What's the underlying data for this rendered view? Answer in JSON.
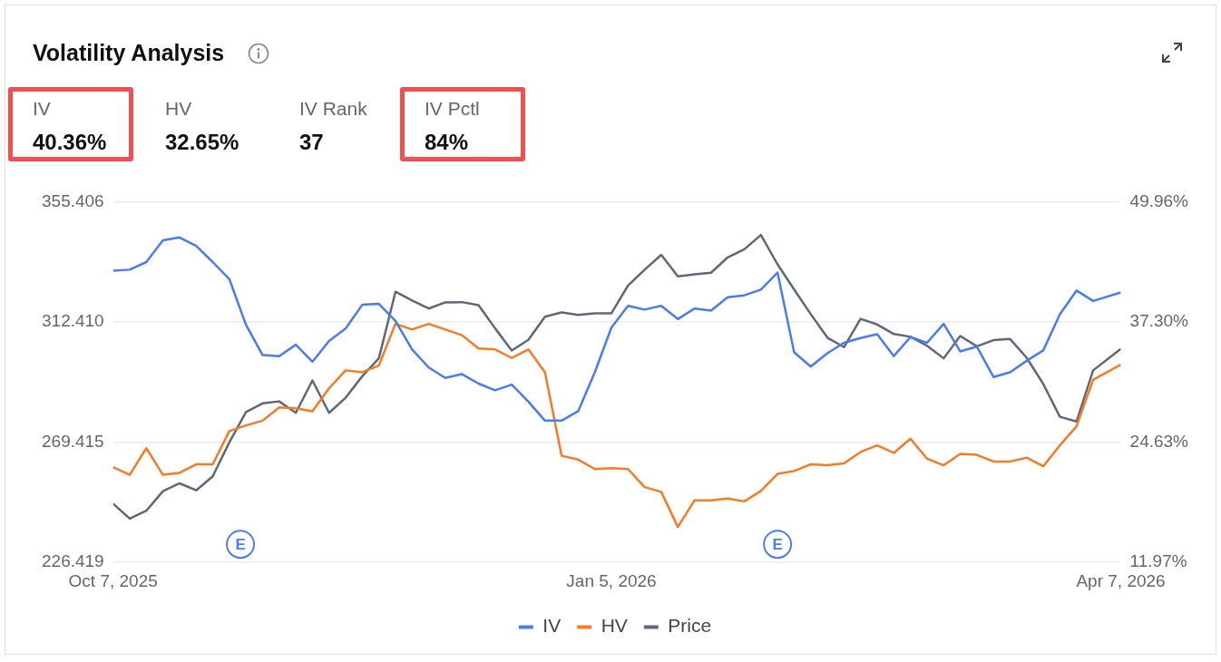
{
  "chart_data": [
    {
      "type": "other",
      "title": "Volatility Analysis",
      "annotations": [
        "IV",
        "40.36%",
        "HV",
        "32.65%",
        "IV Rank",
        "37",
        "IV Pctl",
        "84%"
      ]
    },
    {
      "type": "line",
      "x": [
        "2025-10-07",
        "2025-10-10",
        "2025-10-13",
        "2025-10-16",
        "2025-10-19",
        "2025-10-22",
        "2025-10-25",
        "2025-10-28",
        "2025-10-31",
        "2025-11-03",
        "2025-11-06",
        "2025-11-09",
        "2025-11-12",
        "2025-11-15",
        "2025-11-18",
        "2025-11-21",
        "2025-11-24",
        "2025-11-27",
        "2025-11-30",
        "2025-12-03",
        "2025-12-06",
        "2025-12-09",
        "2025-12-12",
        "2025-12-15",
        "2025-12-18",
        "2025-12-21",
        "2025-12-24",
        "2025-12-27",
        "2025-12-30",
        "2026-01-02",
        "2026-01-05",
        "2026-01-08",
        "2026-01-11",
        "2026-01-14",
        "2026-01-17",
        "2026-01-20",
        "2026-01-23",
        "2026-01-26",
        "2026-01-29",
        "2026-02-01",
        "2026-02-04",
        "2026-02-07",
        "2026-02-10",
        "2026-02-13",
        "2026-02-16",
        "2026-02-19",
        "2026-02-22",
        "2026-02-25",
        "2026-02-28",
        "2026-03-03",
        "2026-03-06",
        "2026-03-09",
        "2026-03-12",
        "2026-03-15",
        "2026-03-18",
        "2026-03-21",
        "2026-03-24",
        "2026-03-27",
        "2026-03-30",
        "2026-04-02",
        "2026-04-07"
      ],
      "series": [
        {
          "name": "IV",
          "color": "#4a7bf0",
          "axis": "y2",
          "values": [
            42.7,
            42.8,
            43.6,
            45.9,
            46.2,
            45.3,
            43.6,
            41.8,
            37.0,
            33.8,
            33.7,
            34.9,
            33.1,
            35.3,
            36.6,
            39.1,
            39.2,
            37.4,
            34.4,
            32.5,
            31.4,
            31.8,
            30.8,
            30.1,
            30.7,
            28.9,
            26.9,
            26.9,
            27.9,
            32.0,
            36.7,
            39.0,
            38.6,
            39.0,
            37.6,
            38.7,
            38.5,
            39.9,
            40.1,
            40.7,
            42.5,
            34.1,
            32.6,
            34.0,
            35.1,
            35.6,
            36.0,
            33.7,
            35.7,
            35.1,
            37.1,
            34.2,
            34.7,
            31.5,
            32.0,
            33.2,
            34.3,
            38.1,
            40.6,
            39.5,
            40.4
          ]
        },
        {
          "name": "HV",
          "color": "#f57b25",
          "axis": "y2",
          "values": [
            22.0,
            21.2,
            24.0,
            21.2,
            21.4,
            22.3,
            22.3,
            25.8,
            26.4,
            26.9,
            28.3,
            28.2,
            27.9,
            30.3,
            32.2,
            32.0,
            32.7,
            37.1,
            36.5,
            37.1,
            36.5,
            35.9,
            34.5,
            34.4,
            33.5,
            34.4,
            32.0,
            23.2,
            22.8,
            21.8,
            21.9,
            21.8,
            19.9,
            19.4,
            15.7,
            18.5,
            18.5,
            18.7,
            18.4,
            19.5,
            21.3,
            21.6,
            22.3,
            22.2,
            22.4,
            23.6,
            24.3,
            23.5,
            25.0,
            22.9,
            22.2,
            23.4,
            23.3,
            22.6,
            22.6,
            23.0,
            22.1,
            24.3,
            26.3,
            31.2,
            32.8
          ]
        },
        {
          "name": "Price",
          "color": "#5f6878",
          "values": [
            247.4,
            242.1,
            244.9,
            251.9,
            254.7,
            252.2,
            257.2,
            269.4,
            280.2,
            283.3,
            284.0,
            279.9,
            291.5,
            279.9,
            285.3,
            293.0,
            299.4,
            323.2,
            320.1,
            317.2,
            319.4,
            319.5,
            318.4,
            310.1,
            302.2,
            306.0,
            314.3,
            315.8,
            314.9,
            315.5,
            315.5,
            325.4,
            331.1,
            336.4,
            328.7,
            329.4,
            330.0,
            335.5,
            338.4,
            343.5,
            333.0,
            324.0,
            315.2,
            306.8,
            303.4,
            313.5,
            311.5,
            308.1,
            307.1,
            303.9,
            299.4,
            307.4,
            303.7,
            305.9,
            306.3,
            299.6,
            290.2,
            278.5,
            276.8,
            295.1,
            302.8
          ]
        }
      ],
      "xlim": [
        "2025-10-07",
        "2026-04-07"
      ],
      "xticks": [
        {
          "value": "2025-10-07",
          "label": "Oct 7, 2025"
        },
        {
          "value": "2026-01-05",
          "label": "Jan 5, 2026"
        },
        {
          "value": "2026-04-07",
          "label": "Apr 7, 2026"
        }
      ],
      "ylim": [
        226.419,
        355.406
      ],
      "yticks": [
        226.419,
        269.415,
        {
          "value": 312.41,
          "label": "312.410"
        },
        355.406
      ],
      "y2lim": [
        11.97,
        49.96
      ],
      "y2ticks": [
        {
          "value": 11.97,
          "label": "11.97%"
        },
        {
          "value": 24.63,
          "label": "24.63%"
        },
        {
          "value": 37.3,
          "label": "37.30%"
        },
        {
          "value": 49.96,
          "label": "49.96%"
        }
      ],
      "annotations": [
        {
          "text": "E",
          "x": "2025-10-30"
        },
        {
          "text": "E",
          "x": "2026-02-04"
        }
      ],
      "grid": "y",
      "legend": "bottom",
      "marker": "none",
      "line_style": "solid"
    }
  ]
}
